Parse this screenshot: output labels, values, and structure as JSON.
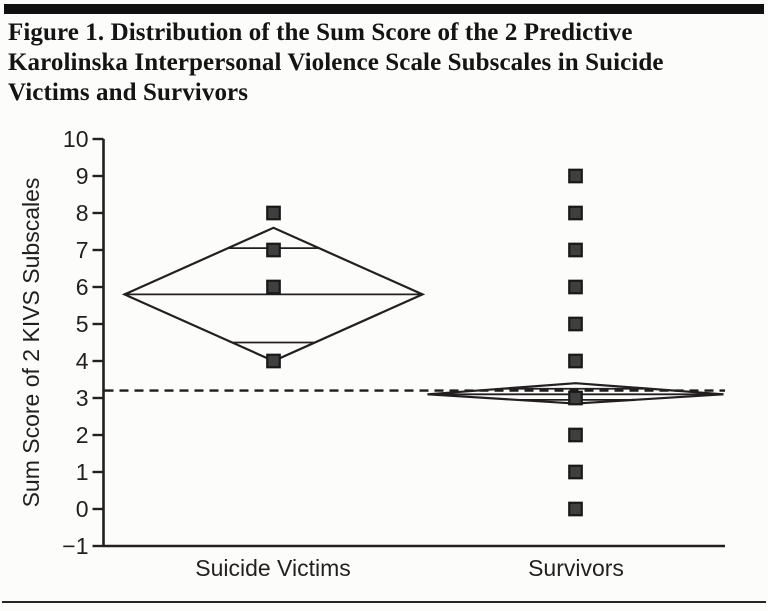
{
  "page": {
    "title": "Figure 1. Distribution of the Sum Score of the 2 Predictive\nKarolinska Interpersonal Violence Scale Subscales in Suicide\nVictims and Survivors"
  },
  "chart_data": {
    "type": "scatter",
    "variant": "means-diamond-plot",
    "title": "Figure 1. Distribution of the Sum Score of the 2 Predictive Karolinska Interpersonal Violence Scale Subscales in Suicide Victims and Survivors",
    "xlabel": "",
    "ylabel": "Sum Score of 2 KIVS Subscales",
    "ylim": [
      -1,
      10
    ],
    "ytick_step": 1,
    "grid": false,
    "legend": "none",
    "categories": [
      "Suicide Victims",
      "Survivors"
    ],
    "grand_mean_dashed_line": 3.2,
    "groups": [
      {
        "label": "Suicide Victims",
        "points": [
          8,
          7,
          6,
          4
        ],
        "mean": 5.8,
        "ci_top": 7.6,
        "ci_bottom": 4.0,
        "overlap_marks": [
          7.05,
          4.5
        ]
      },
      {
        "label": "Survivors",
        "points": [
          9,
          8,
          7,
          6,
          5,
          4,
          3,
          2,
          1,
          0
        ],
        "mean": 3.1,
        "ci_top": 3.4,
        "ci_bottom": 2.85,
        "overlap_marks": [
          3.25,
          2.95
        ]
      }
    ],
    "marker": "square",
    "marker_color": "#3f3f3f",
    "marker_edge_color": "#191919",
    "ink_color": "#231f20"
  }
}
